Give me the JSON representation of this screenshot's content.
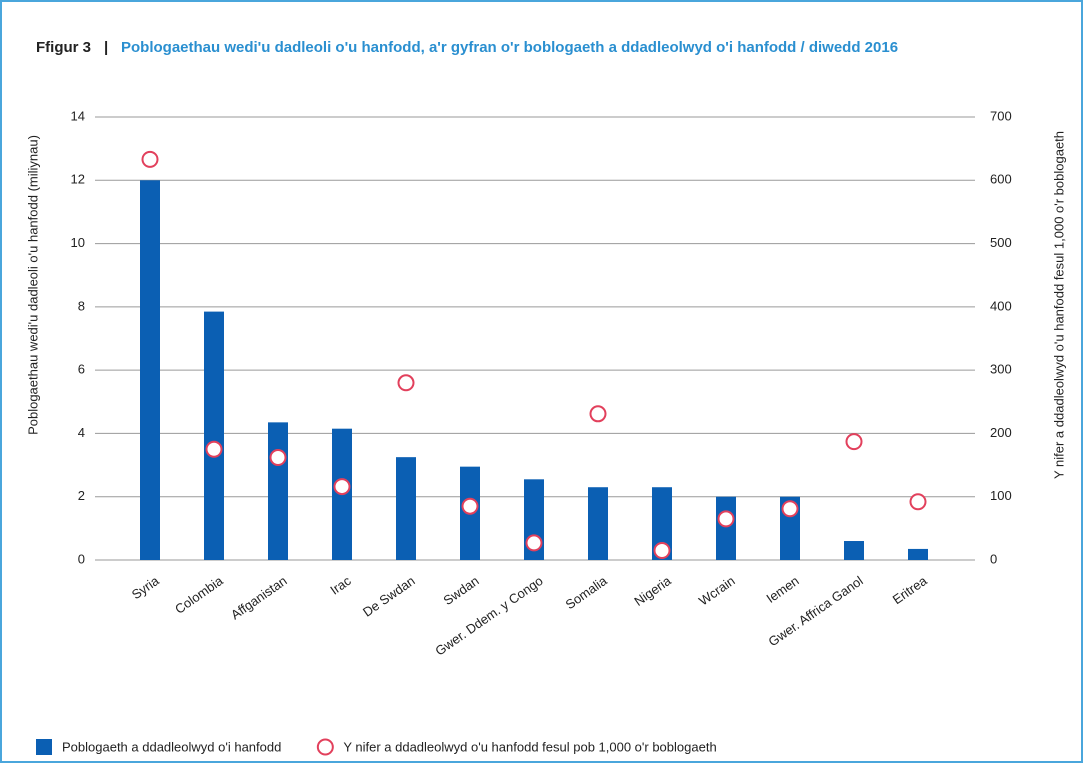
{
  "chart_data": {
    "type": "bar",
    "figure_label": "Ffigur 3",
    "separator": "|",
    "title": "Poblogaethau wedi'u dadleoli o'u hanfodd, a'r gyfran o'r boblogaeth a ddadleolwyd o'i hanfodd / diwedd 2016",
    "ylabel": "Poblogaethau wedi'u dadleoli o'u hanfodd (miliynau)",
    "y2label": "Y nifer a ddadleolwyd o'u hanfodd fesul 1,000 o'r boblogaeth",
    "categories": [
      "Syria",
      "Colombia",
      "Affganistan",
      "Irac",
      "De Swdan",
      "Swdan",
      "Gwer. Ddem. y Congo",
      "Somalia",
      "Nigeria",
      "Wcrain",
      "Iemen",
      "Gwer. Affrica Ganol",
      "Eritrea"
    ],
    "series": [
      {
        "name": "Poblogaeth a ddadleolwyd o'i hanfodd",
        "type": "bar",
        "color": "#0b5fb3",
        "values": [
          12.0,
          7.85,
          4.35,
          4.15,
          3.25,
          2.95,
          2.55,
          2.3,
          2.3,
          2.0,
          2.0,
          0.6,
          0.35
        ]
      },
      {
        "name": "Y nifer a ddadleolwyd o'u hanfodd fesul pob 1,000 o'r boblogaeth",
        "type": "scatter",
        "axis": "y2",
        "color": "#e2405c",
        "values": [
          633,
          175,
          162,
          116,
          280,
          85,
          27,
          231,
          15,
          65,
          81,
          187,
          92
        ]
      }
    ],
    "ylim": [
      0,
      14
    ],
    "yticks": [
      0,
      2,
      4,
      6,
      8,
      10,
      12,
      14
    ],
    "y2lim": [
      0,
      700
    ],
    "y2ticks": [
      0,
      100,
      200,
      300,
      400,
      500,
      600,
      700
    ],
    "grid": true,
    "legend": "bottom-left"
  }
}
